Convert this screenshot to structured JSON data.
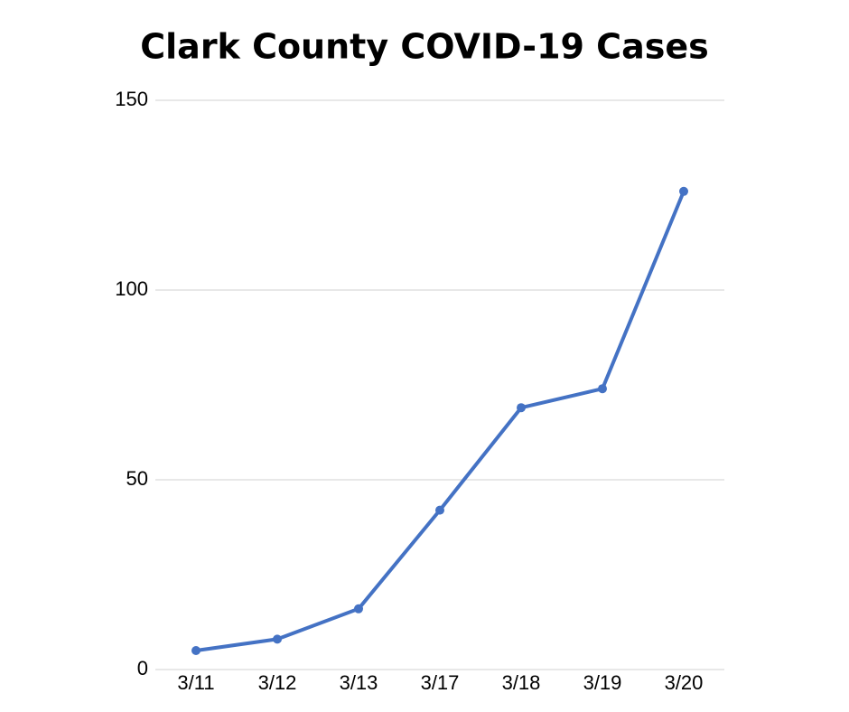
{
  "chart_data": {
    "type": "line",
    "title": "Clark County COVID-19 Cases",
    "categories": [
      "3/11",
      "3/12",
      "3/13",
      "3/17",
      "3/18",
      "3/19",
      "3/20"
    ],
    "values": [
      5,
      8,
      16,
      42,
      69,
      74,
      126
    ],
    "color": "#4472c4",
    "ylim": [
      0,
      150
    ],
    "yticks": [
      0,
      50,
      100,
      150
    ],
    "grid": true
  }
}
